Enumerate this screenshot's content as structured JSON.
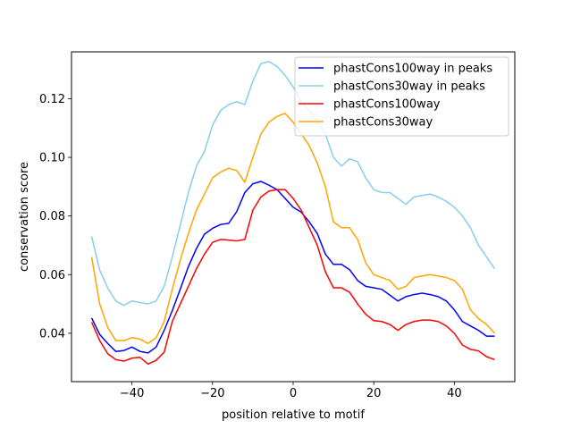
{
  "chart_data": {
    "type": "line",
    "title": "",
    "xlabel": "position relative to motif",
    "ylabel": "conservation score",
    "xlim": [
      -55,
      55
    ],
    "ylim": [
      0.0235,
      0.136
    ],
    "xticks": [
      -40,
      -20,
      0,
      20,
      40
    ],
    "xtick_labels": [
      "−40",
      "−20",
      "0",
      "20",
      "40"
    ],
    "yticks": [
      0.04,
      0.06,
      0.08,
      0.1,
      0.12
    ],
    "ytick_labels": [
      "0.04",
      "0.06",
      "0.08",
      "0.10",
      "0.12"
    ],
    "legend_position": "top-right",
    "x": [
      -50,
      -48,
      -46,
      -44,
      -42,
      -40,
      -38,
      -36,
      -34,
      -32,
      -30,
      -28,
      -26,
      -24,
      -22,
      -20,
      -18,
      -16,
      -14,
      -12,
      -10,
      -8,
      -6,
      -4,
      -2,
      0,
      2,
      4,
      6,
      8,
      10,
      12,
      14,
      16,
      18,
      20,
      22,
      24,
      26,
      28,
      30,
      32,
      34,
      36,
      38,
      40,
      42,
      44,
      46,
      48,
      50
    ],
    "series": [
      {
        "name": "phastCons100way in peaks",
        "color": "#0000ff",
        "values": [
          0.0452,
          0.0396,
          0.0365,
          0.0338,
          0.0341,
          0.0353,
          0.0338,
          0.0333,
          0.0353,
          0.041,
          0.0477,
          0.0551,
          0.0627,
          0.0689,
          0.0738,
          0.0758,
          0.0771,
          0.0775,
          0.0815,
          0.088,
          0.091,
          0.0918,
          0.0905,
          0.089,
          0.086,
          0.083,
          0.0813,
          0.078,
          0.074,
          0.067,
          0.0635,
          0.0635,
          0.0617,
          0.058,
          0.056,
          0.0555,
          0.055,
          0.053,
          0.051,
          0.0525,
          0.0532,
          0.0537,
          0.0532,
          0.0525,
          0.051,
          0.048,
          0.044,
          0.0425,
          0.041,
          0.039,
          0.039
        ]
      },
      {
        "name": "phastCons30way in peaks",
        "color": "#87ceeb",
        "values": [
          0.073,
          0.0615,
          0.0555,
          0.051,
          0.0495,
          0.051,
          0.0505,
          0.05,
          0.051,
          0.056,
          0.066,
          0.077,
          0.088,
          0.097,
          0.102,
          0.111,
          0.116,
          0.118,
          0.119,
          0.118,
          0.126,
          0.132,
          0.1327,
          0.131,
          0.128,
          0.124,
          0.119,
          0.116,
          0.112,
          0.108,
          0.1,
          0.097,
          0.0995,
          0.0985,
          0.093,
          0.089,
          0.088,
          0.088,
          0.086,
          0.084,
          0.0865,
          0.087,
          0.0875,
          0.0865,
          0.085,
          0.083,
          0.08,
          0.076,
          0.07,
          0.066,
          0.062
        ]
      },
      {
        "name": "phastCons100way",
        "color": "#ff0000",
        "values": [
          0.0438,
          0.0375,
          0.033,
          0.031,
          0.0305,
          0.0315,
          0.0318,
          0.0295,
          0.0308,
          0.0335,
          0.044,
          0.05,
          0.056,
          0.062,
          0.067,
          0.071,
          0.072,
          0.0718,
          0.0715,
          0.072,
          0.082,
          0.0865,
          0.0885,
          0.089,
          0.089,
          0.086,
          0.082,
          0.076,
          0.07,
          0.061,
          0.0555,
          0.0555,
          0.054,
          0.05,
          0.0465,
          0.0443,
          0.044,
          0.043,
          0.041,
          0.043,
          0.044,
          0.0445,
          0.0445,
          0.044,
          0.0425,
          0.04,
          0.036,
          0.0345,
          0.034,
          0.032,
          0.031
        ]
      },
      {
        "name": "phastCons30way",
        "color": "#ffa500",
        "values": [
          0.066,
          0.05,
          0.042,
          0.0375,
          0.0375,
          0.0385,
          0.038,
          0.0365,
          0.0385,
          0.044,
          0.055,
          0.065,
          0.074,
          0.082,
          0.0875,
          0.093,
          0.095,
          0.0963,
          0.0955,
          0.0915,
          0.1,
          0.108,
          0.112,
          0.114,
          0.115,
          0.112,
          0.108,
          0.104,
          0.098,
          0.09,
          0.078,
          0.076,
          0.076,
          0.072,
          0.064,
          0.06,
          0.059,
          0.058,
          0.055,
          0.056,
          0.059,
          0.0595,
          0.06,
          0.0595,
          0.059,
          0.058,
          0.055,
          0.048,
          0.045,
          0.043,
          0.04
        ]
      }
    ]
  }
}
